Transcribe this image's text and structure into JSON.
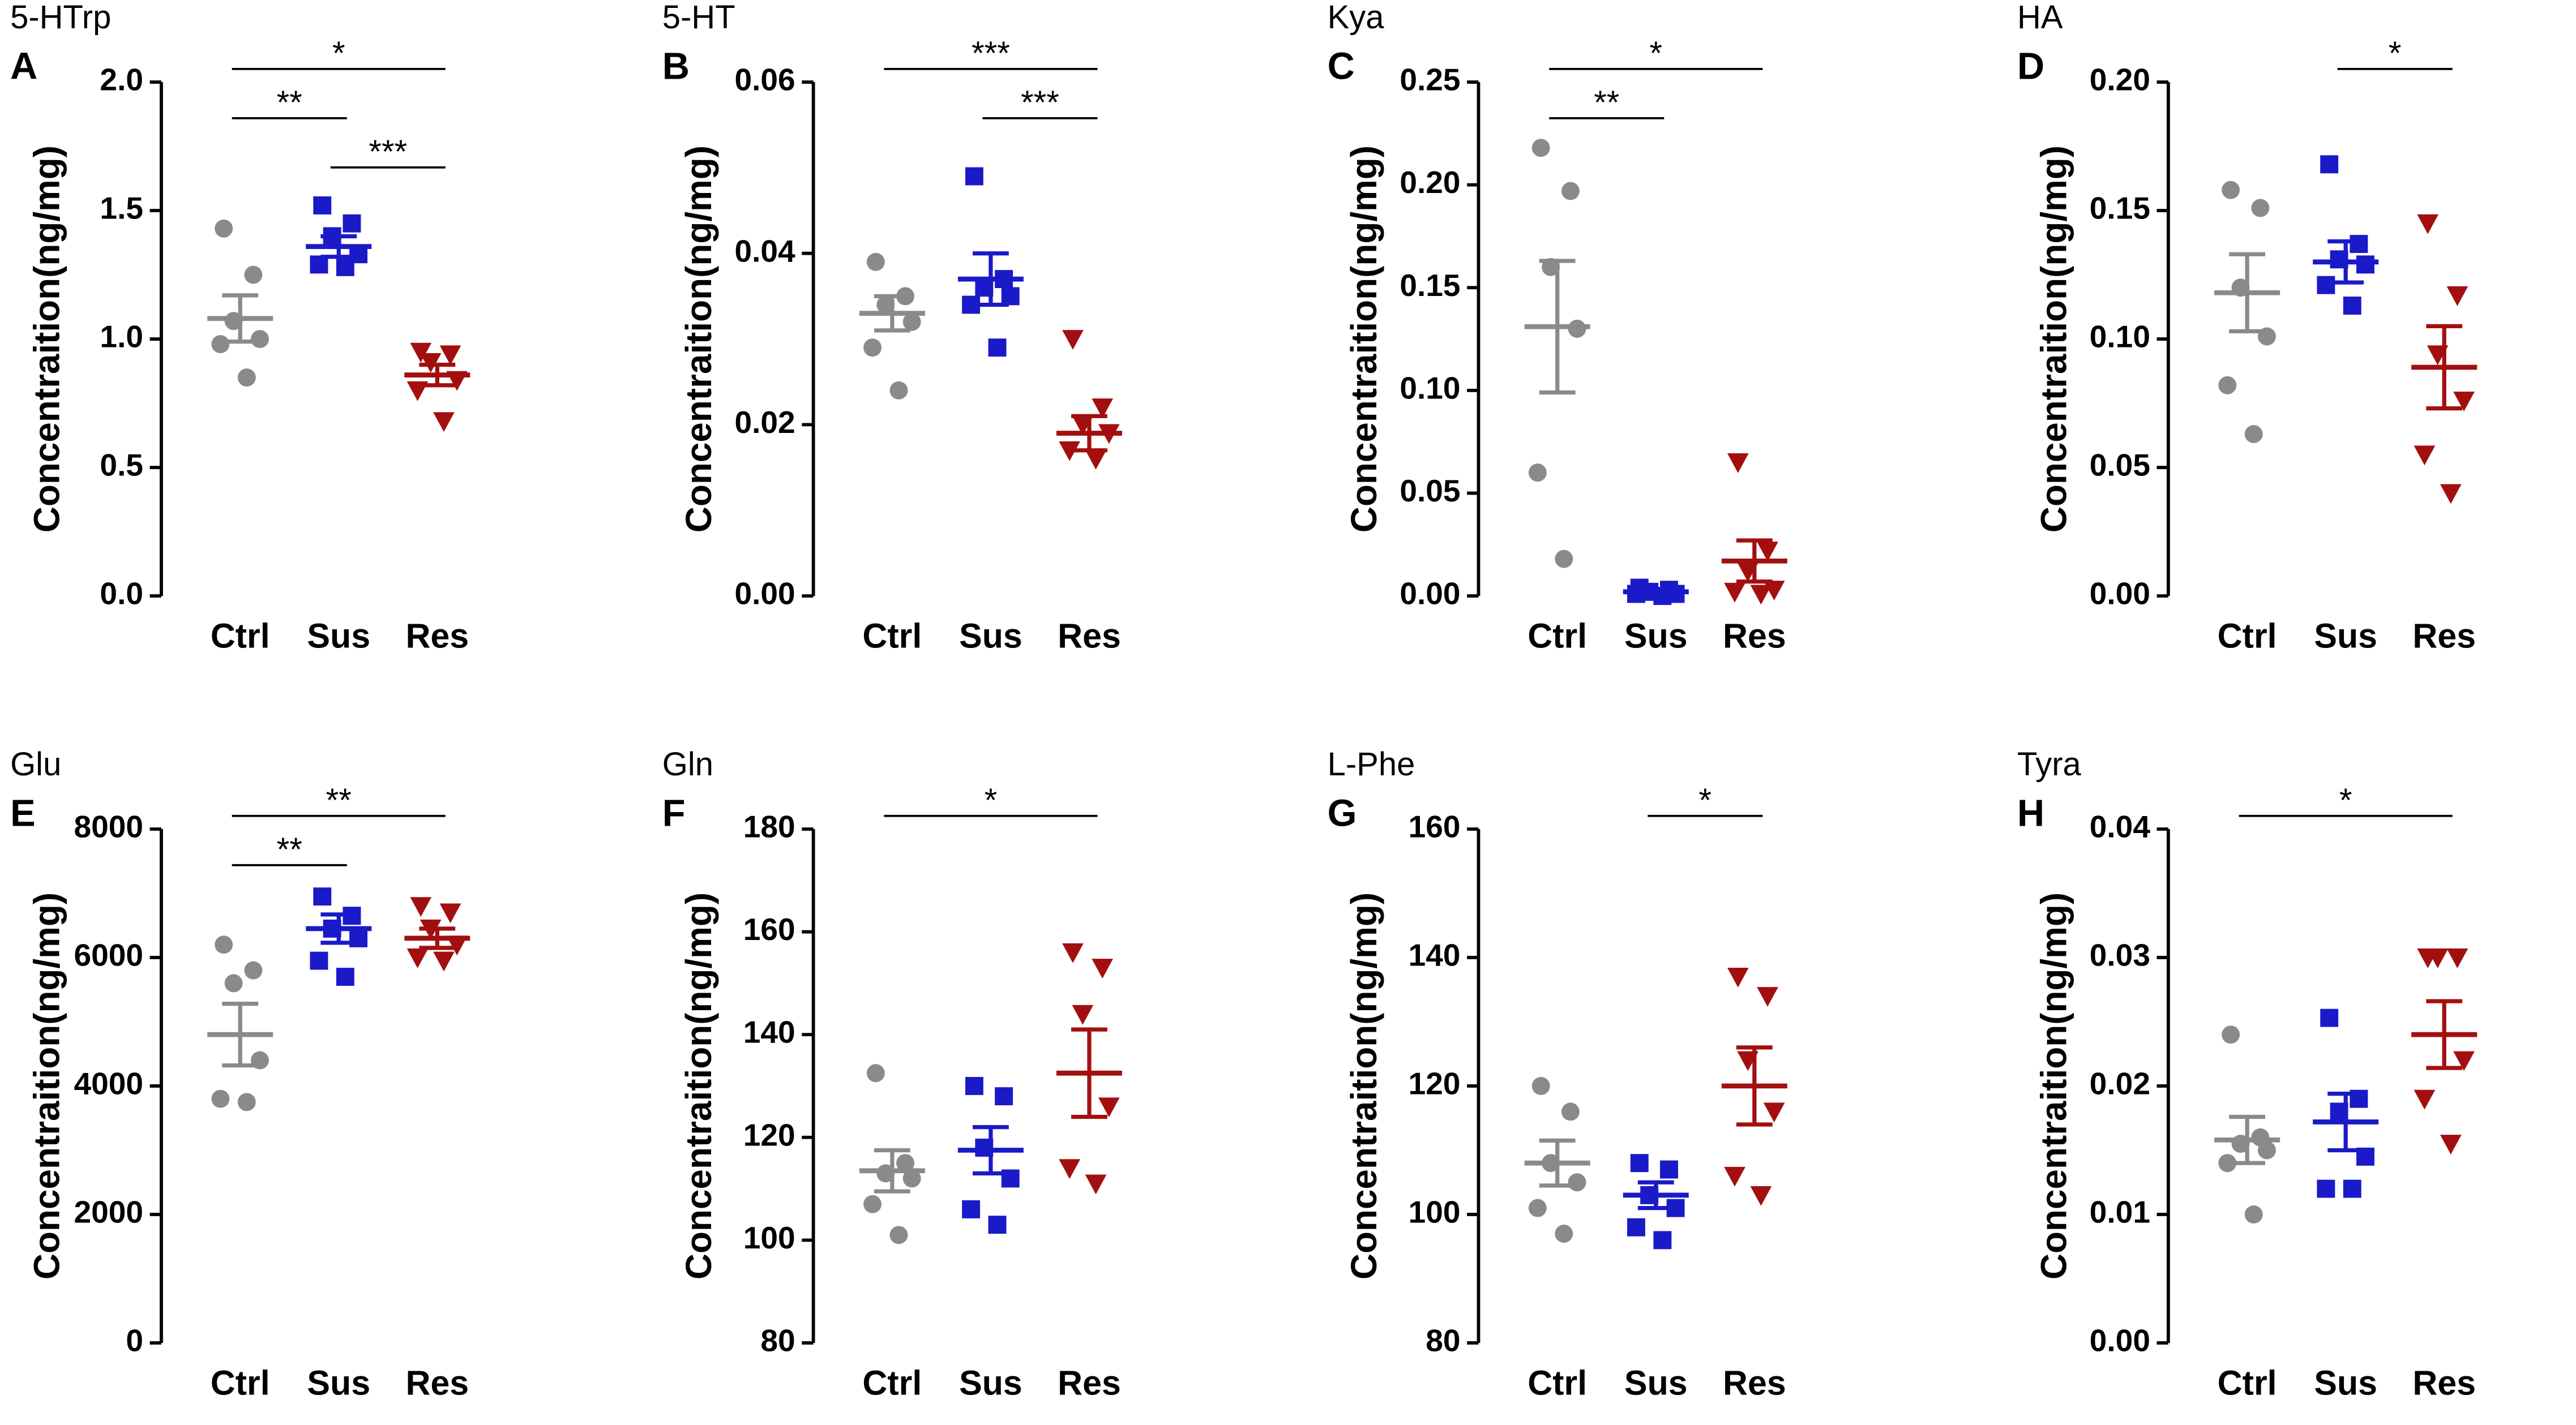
{
  "chart_data": [
    {
      "type": "scatter",
      "panel": "A",
      "title": "5-HTrp",
      "ylabel": "Concentraition(ng/mg)",
      "categories": [
        "Ctrl",
        "Sus",
        "Res"
      ],
      "ylim": [
        0,
        2.0
      ],
      "yticks": [
        {
          "value": 0,
          "label": "0.0"
        },
        {
          "value": 0.5,
          "label": "0.5"
        },
        {
          "value": 1,
          "label": "1.0"
        },
        {
          "value": 1.5,
          "label": "1.5"
        },
        {
          "value": 2,
          "label": "2.0"
        }
      ],
      "groups": [
        {
          "color": "#8a8a8a",
          "marker": "circle",
          "values": [
            1.43,
            1.25,
            1.07,
            1.0,
            0.98,
            0.85
          ],
          "mean": 1.08,
          "sem": 0.09
        },
        {
          "color": "#1a1ac8",
          "marker": "square",
          "values": [
            1.52,
            1.45,
            1.4,
            1.33,
            1.29,
            1.28
          ],
          "mean": 1.36,
          "sem": 0.04
        },
        {
          "color": "#a30f0f",
          "marker": "triangle",
          "values": [
            0.95,
            0.94,
            0.91,
            0.84,
            0.8,
            0.68
          ],
          "mean": 0.86,
          "sem": 0.04
        }
      ],
      "brackets": [
        {
          "label": "*",
          "from": "Ctrl",
          "to": "Res"
        },
        {
          "label": "**",
          "from": "Ctrl",
          "to": "Sus"
        },
        {
          "label": "***",
          "from": "Sus",
          "to": "Res"
        }
      ]
    },
    {
      "type": "scatter",
      "panel": "B",
      "title": "5-HT",
      "ylabel": "Concentraition(ng/mg)",
      "categories": [
        "Ctrl",
        "Sus",
        "Res"
      ],
      "ylim": [
        0,
        0.06
      ],
      "yticks": [
        {
          "value": 0,
          "label": "0.00"
        },
        0.02,
        0.04,
        0.06
      ],
      "groups": [
        {
          "color": "#8a8a8a",
          "marker": "circle",
          "values": [
            0.039,
            0.035,
            0.034,
            0.032,
            0.029,
            0.024
          ],
          "mean": 0.033,
          "sem": 0.002
        },
        {
          "color": "#1a1ac8",
          "marker": "square",
          "values": [
            0.049,
            0.037,
            0.036,
            0.035,
            0.034,
            0.029
          ],
          "mean": 0.037,
          "sem": 0.003
        },
        {
          "color": "#a30f0f",
          "marker": "triangle",
          "values": [
            0.03,
            0.022,
            0.02,
            0.019,
            0.017,
            0.016
          ],
          "mean": 0.019,
          "sem": 0.002
        }
      ],
      "brackets": [
        {
          "label": "***",
          "from": "Ctrl",
          "to": "Res"
        },
        {
          "label": "***",
          "from": "Sus",
          "to": "Res"
        }
      ]
    },
    {
      "type": "scatter",
      "panel": "C",
      "title": "Kya",
      "ylabel": "Concentraition(ng/mg)",
      "categories": [
        "Ctrl",
        "Sus",
        "Res"
      ],
      "ylim": [
        0,
        0.25
      ],
      "yticks": [
        {
          "value": 0,
          "label": "0.00"
        },
        0.05,
        {
          "value": 0.1,
          "label": "0.10"
        },
        0.15,
        {
          "value": 0.2,
          "label": "0.20"
        },
        0.25
      ],
      "groups": [
        {
          "color": "#8a8a8a",
          "marker": "circle",
          "values": [
            0.218,
            0.197,
            0.16,
            0.13,
            0.06,
            0.018
          ],
          "mean": 0.131,
          "sem": 0.032
        },
        {
          "color": "#1a1ac8",
          "marker": "square",
          "values": [
            0.004,
            0.003,
            0.002,
            0.001,
            0.001,
            0.0
          ],
          "mean": 0.002,
          "sem": 0.001
        },
        {
          "color": "#a30f0f",
          "marker": "triangle",
          "values": [
            0.065,
            0.022,
            0.012,
            0.003,
            0.002,
            0.001
          ],
          "mean": 0.017,
          "sem": 0.01
        }
      ],
      "brackets": [
        {
          "label": "*",
          "from": "Ctrl",
          "to": "Res"
        },
        {
          "label": "**",
          "from": "Ctrl",
          "to": "Sus"
        }
      ]
    },
    {
      "type": "scatter",
      "panel": "D",
      "title": "HA",
      "ylabel": "Concentraition(ng/mg)",
      "categories": [
        "Ctrl",
        "Sus",
        "Res"
      ],
      "ylim": [
        0,
        0.2
      ],
      "yticks": [
        {
          "value": 0,
          "label": "0.00"
        },
        0.05,
        {
          "value": 0.1,
          "label": "0.10"
        },
        0.15,
        {
          "value": 0.2,
          "label": "0.20"
        }
      ],
      "groups": [
        {
          "color": "#8a8a8a",
          "marker": "circle",
          "values": [
            0.158,
            0.151,
            0.12,
            0.101,
            0.082,
            0.063
          ],
          "mean": 0.118,
          "sem": 0.015
        },
        {
          "color": "#1a1ac8",
          "marker": "square",
          "values": [
            0.168,
            0.137,
            0.131,
            0.129,
            0.121,
            0.113
          ],
          "mean": 0.13,
          "sem": 0.008
        },
        {
          "color": "#a30f0f",
          "marker": "triangle",
          "values": [
            0.145,
            0.117,
            0.094,
            0.076,
            0.055,
            0.04
          ],
          "mean": 0.089,
          "sem": 0.016
        }
      ],
      "brackets": [
        {
          "label": "*",
          "from": "Sus",
          "to": "Res"
        }
      ]
    },
    {
      "type": "scatter",
      "panel": "E",
      "title": "Glu",
      "ylabel": "Concentraition(ng/mg)",
      "categories": [
        "Ctrl",
        "Sus",
        "Res"
      ],
      "ylim": [
        0,
        8000
      ],
      "yticks": [
        0,
        2000,
        4000,
        6000,
        8000
      ],
      "groups": [
        {
          "color": "#8a8a8a",
          "marker": "circle",
          "values": [
            6200,
            5800,
            5600,
            4400,
            3800,
            3750
          ],
          "mean": 4800,
          "sem": 480
        },
        {
          "color": "#1a1ac8",
          "marker": "square",
          "values": [
            6950,
            6650,
            6450,
            6300,
            5950,
            5700
          ],
          "mean": 6450,
          "sem": 220
        },
        {
          "color": "#a30f0f",
          "marker": "triangle",
          "values": [
            6800,
            6700,
            6450,
            6200,
            6000,
            5950
          ],
          "mean": 6300,
          "sem": 150
        }
      ],
      "brackets": [
        {
          "label": "**",
          "from": "Ctrl",
          "to": "Res"
        },
        {
          "label": "**",
          "from": "Ctrl",
          "to": "Sus"
        }
      ]
    },
    {
      "type": "scatter",
      "panel": "F",
      "title": "Gln",
      "ylabel": "Concentraition(ng/mg)",
      "categories": [
        "Ctrl",
        "Sus",
        "Res"
      ],
      "ylim": [
        80,
        180
      ],
      "yticks": [
        80,
        100,
        120,
        140,
        160,
        180
      ],
      "groups": [
        {
          "color": "#8a8a8a",
          "marker": "circle",
          "values": [
            132.5,
            115,
            113,
            112,
            107,
            101
          ],
          "mean": 113.5,
          "sem": 4
        },
        {
          "color": "#1a1ac8",
          "marker": "square",
          "values": [
            130,
            128,
            118,
            112,
            106,
            103
          ],
          "mean": 117.5,
          "sem": 4.5
        },
        {
          "color": "#a30f0f",
          "marker": "triangle",
          "values": [
            156,
            153,
            144,
            126,
            114,
            111
          ],
          "mean": 132.5,
          "sem": 8.5
        }
      ],
      "brackets": [
        {
          "label": "*",
          "from": "Ctrl",
          "to": "Res"
        }
      ]
    },
    {
      "type": "scatter",
      "panel": "G",
      "title": "L-Phe",
      "ylabel": "Concentraition(ng/mg)",
      "categories": [
        "Ctrl",
        "Sus",
        "Res"
      ],
      "ylim": [
        80,
        160
      ],
      "yticks": [
        80,
        100,
        120,
        140,
        160
      ],
      "groups": [
        {
          "color": "#8a8a8a",
          "marker": "circle",
          "values": [
            120,
            116,
            108,
            105,
            101,
            97
          ],
          "mean": 108,
          "sem": 3.5
        },
        {
          "color": "#1a1ac8",
          "marker": "square",
          "values": [
            108,
            107,
            103,
            101,
            98,
            96
          ],
          "mean": 103,
          "sem": 2
        },
        {
          "color": "#a30f0f",
          "marker": "triangle",
          "values": [
            137,
            134,
            124,
            116,
            106,
            103
          ],
          "mean": 120,
          "sem": 6
        }
      ],
      "brackets": [
        {
          "label": "*",
          "from": "Sus",
          "to": "Res"
        }
      ]
    },
    {
      "type": "scatter",
      "panel": "H",
      "title": "Tyra",
      "ylabel": "Concentraition(ng/mg)",
      "categories": [
        "Ctrl",
        "Sus",
        "Res"
      ],
      "ylim": [
        0,
        0.04
      ],
      "yticks": [
        {
          "value": 0,
          "label": "0.00"
        },
        0.01,
        0.02,
        0.03,
        0.04
      ],
      "groups": [
        {
          "color": "#8a8a8a",
          "marker": "circle",
          "values": [
            0.024,
            0.016,
            0.0155,
            0.015,
            0.014,
            0.01
          ],
          "mean": 0.0158,
          "sem": 0.0018
        },
        {
          "color": "#1a1ac8",
          "marker": "square",
          "values": [
            0.0253,
            0.019,
            0.018,
            0.0145,
            0.012,
            0.012
          ],
          "mean": 0.0172,
          "sem": 0.0022
        },
        {
          "color": "#a30f0f",
          "marker": "triangle",
          "values": [
            0.03,
            0.03,
            0.03,
            0.022,
            0.019,
            0.0155
          ],
          "mean": 0.024,
          "sem": 0.0026
        }
      ],
      "brackets": [
        {
          "label": "*",
          "from": "Ctrl",
          "to": "Res"
        }
      ]
    }
  ]
}
